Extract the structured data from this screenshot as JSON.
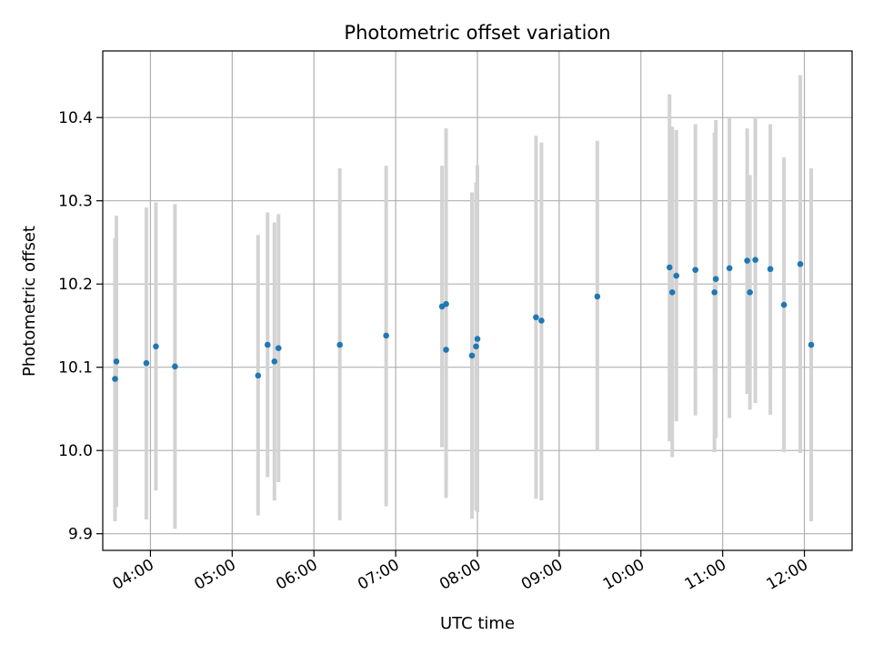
{
  "chart_data": {
    "type": "scatter",
    "title": "Photometric offset variation",
    "xlabel": "UTC time",
    "ylabel": "Photometric offset",
    "xlim": [
      "03:25",
      "12:35"
    ],
    "ylim": [
      9.88,
      10.48
    ],
    "xticks": [
      "04:00",
      "05:00",
      "06:00",
      "07:00",
      "08:00",
      "09:00",
      "10:00",
      "11:00",
      "12:00"
    ],
    "yticks": [
      "9.9",
      "10.0",
      "10.1",
      "10.2",
      "10.3",
      "10.4"
    ],
    "grid": true,
    "marker_color": "#1f77b4",
    "errorbar_color": "#d3d3d3",
    "points": [
      {
        "x": "03:34",
        "y": 10.086,
        "low": 9.915,
        "high": 10.255
      },
      {
        "x": "03:35",
        "y": 10.107,
        "low": 9.932,
        "high": 10.282
      },
      {
        "x": "03:57",
        "y": 10.105,
        "low": 9.917,
        "high": 10.292
      },
      {
        "x": "04:04",
        "y": 10.125,
        "low": 9.952,
        "high": 10.298
      },
      {
        "x": "04:18",
        "y": 10.101,
        "low": 9.906,
        "high": 10.296
      },
      {
        "x": "05:19",
        "y": 10.09,
        "low": 9.922,
        "high": 10.259
      },
      {
        "x": "05:26",
        "y": 10.127,
        "low": 9.968,
        "high": 10.286
      },
      {
        "x": "05:31",
        "y": 10.107,
        "low": 9.94,
        "high": 10.274
      },
      {
        "x": "05:34",
        "y": 10.123,
        "low": 9.962,
        "high": 10.284
      },
      {
        "x": "06:19",
        "y": 10.127,
        "low": 9.916,
        "high": 10.339
      },
      {
        "x": "06:53",
        "y": 10.138,
        "low": 9.933,
        "high": 10.342
      },
      {
        "x": "07:34",
        "y": 10.173,
        "low": 10.004,
        "high": 10.342
      },
      {
        "x": "07:37",
        "y": 10.176,
        "low": 9.966,
        "high": 10.387
      },
      {
        "x": "07:37",
        "y": 10.121,
        "low": 9.943,
        "high": 10.3
      },
      {
        "x": "07:56",
        "y": 10.114,
        "low": 9.918,
        "high": 10.31
      },
      {
        "x": "07:59",
        "y": 10.125,
        "low": 9.928,
        "high": 10.322
      },
      {
        "x": "08:00",
        "y": 10.134,
        "low": 9.926,
        "high": 10.343
      },
      {
        "x": "08:43",
        "y": 10.16,
        "low": 9.942,
        "high": 10.378
      },
      {
        "x": "08:47",
        "y": 10.156,
        "low": 9.94,
        "high": 10.37
      },
      {
        "x": "09:28",
        "y": 10.185,
        "low": 10.0,
        "high": 10.372
      },
      {
        "x": "10:21",
        "y": 10.22,
        "low": 10.011,
        "high": 10.428
      },
      {
        "x": "10:23",
        "y": 10.19,
        "low": 9.992,
        "high": 10.389
      },
      {
        "x": "10:26",
        "y": 10.21,
        "low": 10.035,
        "high": 10.385
      },
      {
        "x": "10:40",
        "y": 10.217,
        "low": 10.042,
        "high": 10.392
      },
      {
        "x": "10:54",
        "y": 10.19,
        "low": 9.998,
        "high": 10.382
      },
      {
        "x": "10:55",
        "y": 10.206,
        "low": 10.015,
        "high": 10.397
      },
      {
        "x": "11:05",
        "y": 10.219,
        "low": 10.039,
        "high": 10.399
      },
      {
        "x": "11:18",
        "y": 10.228,
        "low": 10.068,
        "high": 10.387
      },
      {
        "x": "11:20",
        "y": 10.19,
        "low": 10.049,
        "high": 10.331
      },
      {
        "x": "11:24",
        "y": 10.229,
        "low": 10.057,
        "high": 10.401
      },
      {
        "x": "11:35",
        "y": 10.218,
        "low": 10.043,
        "high": 10.392
      },
      {
        "x": "11:45",
        "y": 10.175,
        "low": 9.998,
        "high": 10.352
      },
      {
        "x": "11:57",
        "y": 10.224,
        "low": 9.997,
        "high": 10.451
      },
      {
        "x": "12:05",
        "y": 10.127,
        "low": 9.915,
        "high": 10.339
      }
    ]
  }
}
